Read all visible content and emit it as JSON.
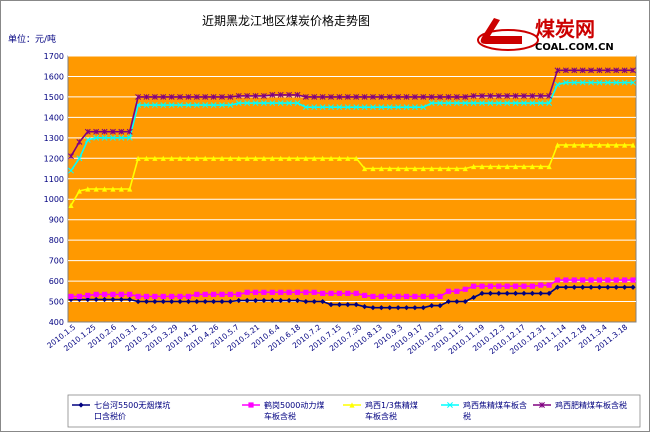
{
  "chart_data": {
    "type": "line",
    "title": "近期黑龙江地区煤炭价格走势图",
    "unit_label": "单位：元/吨",
    "ylim": [
      400,
      1700
    ],
    "ytick_step": 100,
    "grid": true,
    "legend_position": "bottom",
    "plot_background": "#ff9900",
    "x_tick_labels": [
      "2010.1.5",
      "2010.1.25",
      "2010.2.6",
      "2010.3.1",
      "2010.3.15",
      "2010.3.29",
      "2010.4.12",
      "2010.4.26",
      "2010.5.7",
      "2010.5.21",
      "2010.6.4",
      "2010.6.18",
      "2010.7.2",
      "2010.7.15",
      "2010.7.30",
      "2010.8.13",
      "2010.9.3",
      "2010.9.17",
      "2010.10.22",
      "2010.11.5",
      "2010.11.19",
      "2010.12.3",
      "2010.12.17",
      "2010.12.31",
      "2011.1.14",
      "2011.2.18",
      "2011.3.4",
      "2011.3.18"
    ],
    "series": [
      {
        "name": "七台河5500无烟煤坑口含税价",
        "color": "#000080",
        "marker": "diamond",
        "values": [
          510,
          510,
          510,
          510,
          510,
          510,
          510,
          510,
          500,
          500,
          500,
          500,
          500,
          500,
          500,
          500,
          500,
          500,
          500,
          500,
          505,
          505,
          505,
          505,
          505,
          505,
          505,
          505,
          500,
          500,
          500,
          485,
          485,
          485,
          485,
          475,
          470,
          470,
          470,
          470,
          470,
          470,
          470,
          480,
          480,
          500,
          500,
          500,
          520,
          540,
          540,
          540,
          540,
          540,
          540,
          540,
          540,
          540,
          570,
          570,
          570,
          570,
          570,
          570,
          570,
          570,
          570,
          570
        ]
      },
      {
        "name": "鹤岗5000动力煤车板含税",
        "color": "#ff00ff",
        "marker": "square",
        "values": [
          525,
          525,
          530,
          535,
          535,
          535,
          535,
          535,
          525,
          525,
          525,
          525,
          525,
          525,
          525,
          535,
          535,
          535,
          535,
          535,
          535,
          545,
          545,
          545,
          545,
          545,
          545,
          545,
          545,
          545,
          540,
          540,
          540,
          540,
          540,
          530,
          525,
          525,
          525,
          525,
          525,
          525,
          525,
          525,
          525,
          550,
          550,
          560,
          575,
          575,
          575,
          575,
          575,
          575,
          575,
          575,
          580,
          580,
          605,
          605,
          605,
          605,
          605,
          605,
          605,
          605,
          605,
          605
        ]
      },
      {
        "name": "鸡西1/3焦精煤车板含税",
        "color": "#ffff00",
        "marker": "triangle",
        "values": [
          970,
          1040,
          1050,
          1050,
          1050,
          1050,
          1050,
          1050,
          1200,
          1200,
          1200,
          1200,
          1200,
          1200,
          1200,
          1200,
          1200,
          1200,
          1200,
          1200,
          1200,
          1200,
          1200,
          1200,
          1200,
          1200,
          1200,
          1200,
          1200,
          1200,
          1200,
          1200,
          1200,
          1200,
          1200,
          1150,
          1150,
          1150,
          1150,
          1150,
          1150,
          1150,
          1150,
          1150,
          1150,
          1150,
          1150,
          1150,
          1160,
          1160,
          1160,
          1160,
          1160,
          1160,
          1160,
          1160,
          1160,
          1160,
          1265,
          1265,
          1265,
          1265,
          1265,
          1265,
          1265,
          1265,
          1265,
          1265
        ]
      },
      {
        "name": "鸡西焦精煤车板含税",
        "color": "#00ffff",
        "marker": "x",
        "values": [
          1140,
          1200,
          1290,
          1300,
          1300,
          1300,
          1300,
          1300,
          1460,
          1460,
          1460,
          1460,
          1460,
          1460,
          1460,
          1460,
          1460,
          1460,
          1460,
          1460,
          1470,
          1470,
          1470,
          1470,
          1470,
          1470,
          1470,
          1470,
          1450,
          1450,
          1450,
          1450,
          1450,
          1450,
          1450,
          1450,
          1450,
          1450,
          1450,
          1450,
          1450,
          1450,
          1450,
          1470,
          1470,
          1470,
          1470,
          1470,
          1470,
          1470,
          1470,
          1470,
          1470,
          1470,
          1470,
          1470,
          1470,
          1470,
          1560,
          1570,
          1570,
          1570,
          1570,
          1570,
          1570,
          1570,
          1570,
          1570
        ]
      },
      {
        "name": "鸡西肥精煤车板含税",
        "color": "#800080",
        "marker": "star",
        "values": [
          1210,
          1280,
          1330,
          1330,
          1330,
          1330,
          1330,
          1330,
          1500,
          1500,
          1500,
          1500,
          1500,
          1500,
          1500,
          1500,
          1500,
          1500,
          1500,
          1500,
          1505,
          1505,
          1505,
          1505,
          1510,
          1510,
          1510,
          1510,
          1500,
          1500,
          1500,
          1500,
          1500,
          1500,
          1500,
          1500,
          1500,
          1500,
          1500,
          1500,
          1500,
          1500,
          1500,
          1500,
          1500,
          1500,
          1500,
          1500,
          1505,
          1505,
          1505,
          1505,
          1505,
          1505,
          1505,
          1505,
          1505,
          1505,
          1630,
          1630,
          1630,
          1630,
          1630,
          1630,
          1630,
          1630,
          1630,
          1630
        ]
      }
    ]
  },
  "logo": {
    "text_cn": "煤炭网",
    "text_en": "COAL.COM.CN",
    "brand_color": "#cc0000"
  },
  "colors": {
    "plot_background": "#ff9900",
    "grid": "#ffffff",
    "axis_text": "#000080"
  }
}
